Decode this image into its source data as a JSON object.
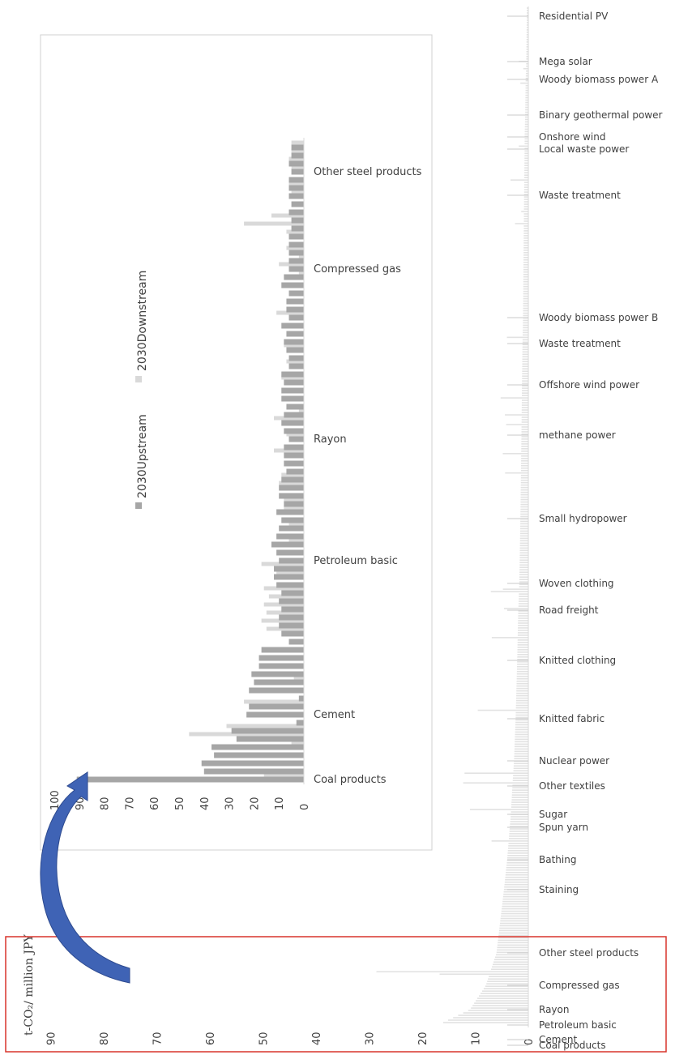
{
  "chart_data": [
    {
      "type": "bar",
      "id": "main",
      "orientation": "horizontal",
      "value_axis": {
        "ticks": [
          "0",
          "10",
          "20",
          "30",
          "40",
          "50",
          "60",
          "70",
          "80",
          "90"
        ],
        "range": [
          0,
          93
        ]
      },
      "unit_label": "t-CO₂/ million JPY",
      "category_labels": [
        "Residential PV",
        "Mega solar",
        "Woody biomass power A",
        "Binary geothermal power",
        "Onshore wind",
        "Local waste power",
        "Waste treatment",
        "Woody biomass power B",
        "Waste treatment",
        "Offshore wind power",
        "methane power",
        "Small hydropower",
        "Woven clothing",
        "Road freight",
        "Knitted clothing",
        "Knitted fabric",
        "Nuclear power",
        "Other textiles",
        "Sugar",
        "Spun yarn",
        "Bathing",
        "Staining",
        "Other steel products",
        "Compressed gas",
        "Rayon",
        "Petroleum basic",
        "Cement",
        "Coal products"
      ],
      "category_anchor_values": [
        0.3,
        0.4,
        0.5,
        0.6,
        0.7,
        0.7,
        0.8,
        1.0,
        1.1,
        1.2,
        1.3,
        1.5,
        1.7,
        1.9,
        2.1,
        2.4,
        2.7,
        3.0,
        3.3,
        3.5,
        4.0,
        4.6,
        6.0,
        8.0,
        11.0,
        17.0,
        27.0,
        40.0
      ],
      "note": "Hundreds of thin bars sorted ascending by emission intensity (top = lowest)",
      "highlight_box": true
    },
    {
      "type": "bar",
      "id": "inset",
      "orientation": "horizontal",
      "value_axis": {
        "ticks": [
          "0",
          "10",
          "20",
          "30",
          "40",
          "50",
          "60",
          "70",
          "80",
          "90",
          "100"
        ],
        "range": [
          0,
          100
        ]
      },
      "series": [
        {
          "name": "2030Upstream",
          "color": "#a6a6a6",
          "values": [
            91,
            40,
            41,
            36,
            37,
            27,
            29,
            3,
            23,
            22,
            2,
            22,
            20,
            21,
            18,
            18,
            17,
            6,
            9,
            10,
            10,
            9,
            10,
            9,
            11,
            12,
            12,
            10,
            11,
            13,
            11,
            10,
            9,
            11,
            8,
            10,
            10,
            9,
            7,
            8,
            8,
            8,
            6,
            8,
            9,
            8,
            7,
            9,
            9,
            8,
            9,
            6,
            6,
            7,
            8,
            7,
            9,
            6,
            7,
            7,
            6,
            9,
            8,
            6,
            6,
            6,
            6,
            6,
            5,
            5,
            6,
            5,
            6,
            6,
            6,
            5,
            6,
            5,
            5
          ]
        },
        {
          "name": "2030Downstream",
          "color": "#d9d9d9",
          "values": [
            16,
            0,
            0,
            0,
            5,
            46,
            31,
            0,
            0,
            24,
            0,
            0,
            4,
            0,
            0,
            0,
            0,
            0,
            15,
            17,
            15,
            16,
            14,
            16,
            0,
            11,
            17,
            0,
            0,
            6,
            0,
            6,
            0,
            8,
            8,
            0,
            10,
            9,
            0,
            0,
            12,
            0,
            7,
            0,
            12,
            2,
            0,
            0,
            0,
            9,
            0,
            7,
            0,
            8,
            0,
            0,
            0,
            11,
            0,
            0,
            0,
            0,
            2,
            10,
            2,
            7,
            0,
            7,
            24,
            13,
            0,
            0,
            5,
            6,
            0,
            5,
            6,
            5,
            5
          ]
        }
      ],
      "category_labels": [
        "Coal products",
        "Cement",
        "Petroleum basic",
        "Rayon",
        "Compressed gas",
        "Other steel products"
      ],
      "category_label_rows": [
        0,
        8,
        27,
        42,
        63,
        75
      ]
    }
  ],
  "colors": {
    "upstream": "#a6a6a6",
    "downstream": "#d9d9d9",
    "main_bar": "#e2e2e2",
    "highlight": "#d9342b",
    "arrow": "#3f63b5",
    "axis_text": "#404040"
  },
  "icons": [
    "curved-arrow-icon"
  ]
}
